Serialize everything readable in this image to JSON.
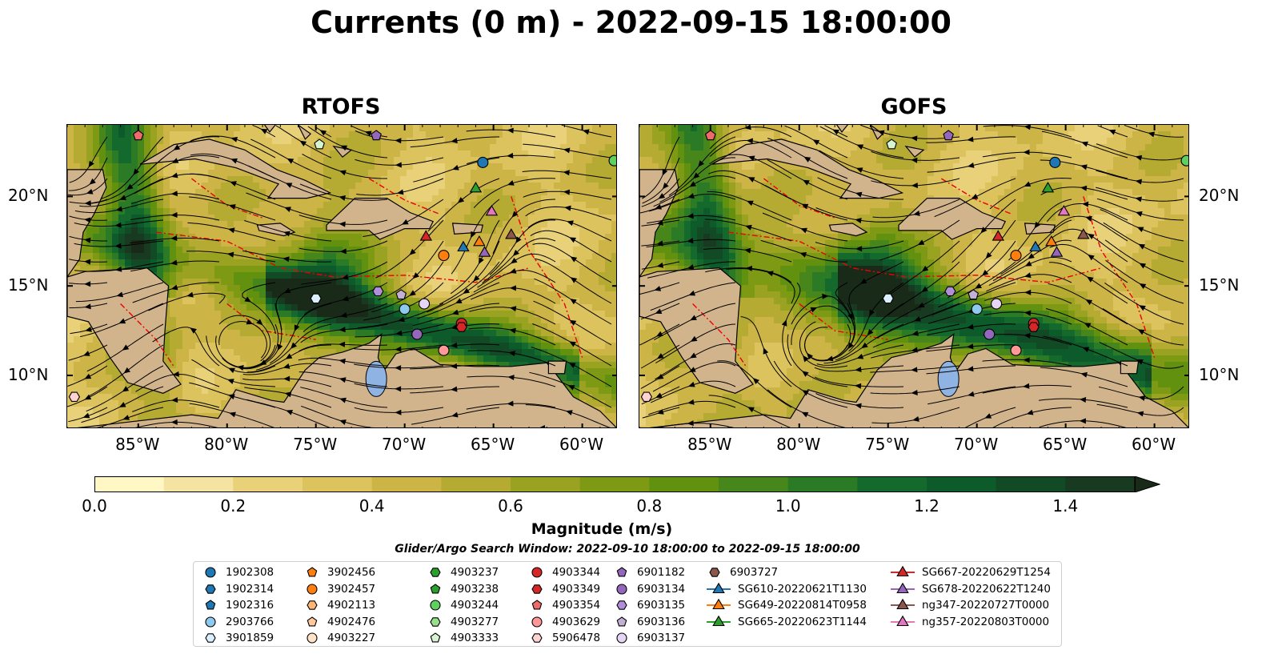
{
  "title": "Currents (0 m) - 2022-09-15 18:00:00",
  "panels": [
    {
      "title": "RTOFS",
      "variant": 0
    },
    {
      "title": "GOFS",
      "variant": 1
    }
  ],
  "lon_ticks": [
    "85°W",
    "80°W",
    "75°W",
    "70°W",
    "65°W",
    "60°W"
  ],
  "lat_ticks": [
    "20°N",
    "15°N",
    "10°N"
  ],
  "colorbar": {
    "label": "Magnitude (m/s)",
    "ticks": [
      "0.0",
      "0.2",
      "0.4",
      "0.6",
      "0.8",
      "1.0",
      "1.2",
      "1.4"
    ],
    "range": [
      0.0,
      1.5
    ],
    "extend": "max",
    "colors": [
      "#fff8c4",
      "#f5e3a1",
      "#e9d17a",
      "#dcc35e",
      "#cdb446",
      "#b5ab33",
      "#9aa321",
      "#7e9a14",
      "#62900f",
      "#46861a",
      "#2b7a25",
      "#136a2c",
      "#0d5a2b",
      "#124a26",
      "#173a20",
      "#192a19"
    ]
  },
  "search_window": "Glider/Argo Search Window: 2022-09-10 18:00:00 to 2022-09-15 18:00:00",
  "legend": [
    {
      "label": "1902308",
      "marker": "circle",
      "color": "#1f77b4"
    },
    {
      "label": "1902314",
      "marker": "hexagon",
      "color": "#1f77b4"
    },
    {
      "label": "1902316",
      "marker": "pentagon",
      "color": "#1f77b4"
    },
    {
      "label": "2903766",
      "marker": "circle",
      "color": "#8ec9f0"
    },
    {
      "label": "3901859",
      "marker": "hexagon",
      "color": "#dcefff"
    },
    {
      "label": "3902456",
      "marker": "pentagon",
      "color": "#ff7f0e"
    },
    {
      "label": "3902457",
      "marker": "circle",
      "color": "#ff7f0e"
    },
    {
      "label": "4902113",
      "marker": "hexagon",
      "color": "#ffb574"
    },
    {
      "label": "4902476",
      "marker": "pentagon",
      "color": "#ffc99c"
    },
    {
      "label": "4903227",
      "marker": "circle",
      "color": "#ffe3c9"
    },
    {
      "label": "4903237",
      "marker": "hexagon",
      "color": "#2ca02c"
    },
    {
      "label": "4903238",
      "marker": "pentagon",
      "color": "#2ca02c"
    },
    {
      "label": "4903244",
      "marker": "circle",
      "color": "#5fcf5f"
    },
    {
      "label": "4903277",
      "marker": "hexagon",
      "color": "#98df8a"
    },
    {
      "label": "4903333",
      "marker": "pentagon",
      "color": "#d6f5cf"
    },
    {
      "label": "4903344",
      "marker": "circle",
      "color": "#d62728"
    },
    {
      "label": "4903349",
      "marker": "hexagon",
      "color": "#d62728"
    },
    {
      "label": "4903354",
      "marker": "pentagon",
      "color": "#ef6a6a"
    },
    {
      "label": "4903629",
      "marker": "circle",
      "color": "#ff9896"
    },
    {
      "label": "5906478",
      "marker": "hexagon",
      "color": "#ffd3d2"
    },
    {
      "label": "6901182",
      "marker": "pentagon",
      "color": "#9467bd"
    },
    {
      "label": "6903134",
      "marker": "circle",
      "color": "#9467bd"
    },
    {
      "label": "6903135",
      "marker": "hexagon",
      "color": "#b18edb"
    },
    {
      "label": "6903136",
      "marker": "pentagon",
      "color": "#c5b0d5"
    },
    {
      "label": "6903137",
      "marker": "circle",
      "color": "#e6d5f5"
    },
    {
      "label": "6903727",
      "marker": "hexagon",
      "color": "#8c564b"
    },
    {
      "label": "SG610-20220621T1130",
      "marker": "triangle-line",
      "color": "#1f77b4"
    },
    {
      "label": "SG649-20220814T0958",
      "marker": "triangle-line",
      "color": "#ff7f0e"
    },
    {
      "label": "SG665-20220623T1144",
      "marker": "triangle-line",
      "color": "#2ca02c"
    },
    {
      "label": "SG667-20220629T1254",
      "marker": "triangle-line",
      "color": "#d62728"
    },
    {
      "label": "SG678-20220622T1240",
      "marker": "triangle-line",
      "color": "#9467bd"
    },
    {
      "label": "ng347-20220727T0000",
      "marker": "triangle-line",
      "color": "#8c564b"
    },
    {
      "label": "ng357-20220803T0000",
      "marker": "triangle-line",
      "color": "#e377c2"
    }
  ],
  "observations": [
    {
      "id": "1902308",
      "lon": -65.6,
      "lat": 21.9
    },
    {
      "id": "3901859",
      "lon": -75.0,
      "lat": 14.3
    },
    {
      "id": "3902457",
      "lon": -67.8,
      "lat": 16.7
    },
    {
      "id": "4903244",
      "lon": -58.2,
      "lat": 22.0
    },
    {
      "id": "4903333",
      "lon": -74.8,
      "lat": 22.9
    },
    {
      "id": "4903344",
      "lon": -66.8,
      "lat": 12.9
    },
    {
      "id": "4903349",
      "lon": -66.8,
      "lat": 12.7
    },
    {
      "id": "4903354",
      "lon": -85.0,
      "lat": 23.4
    },
    {
      "id": "4903629",
      "lon": -67.8,
      "lat": 11.4
    },
    {
      "id": "5906478",
      "lon": -88.6,
      "lat": 8.8
    },
    {
      "id": "6901182",
      "lon": -71.6,
      "lat": 23.4
    },
    {
      "id": "6903134",
      "lon": -69.3,
      "lat": 12.3
    },
    {
      "id": "6903135",
      "lon": -71.5,
      "lat": 14.7
    },
    {
      "id": "6903136",
      "lon": -70.2,
      "lat": 14.5
    },
    {
      "id": "6903137",
      "lon": -68.9,
      "lat": 14.0
    },
    {
      "id": "2903766",
      "lon": -70.0,
      "lat": 13.7
    },
    {
      "id": "SG610-20220621T1130",
      "lon": -66.7,
      "lat": 17.2
    },
    {
      "id": "SG649-20220814T0958",
      "lon": -65.8,
      "lat": 17.5
    },
    {
      "id": "SG665-20220623T1144",
      "lon": -66.0,
      "lat": 20.5
    },
    {
      "id": "SG667-20220629T1254",
      "lon": -68.8,
      "lat": 17.8
    },
    {
      "id": "SG678-20220622T1240",
      "lon": -65.5,
      "lat": 16.9
    },
    {
      "id": "ng347-20220727T0000",
      "lon": -64.0,
      "lat": 17.9
    },
    {
      "id": "ng357-20220803T0000",
      "lon": -65.1,
      "lat": 19.2
    }
  ],
  "extent": {
    "lon": [
      -89,
      -58
    ],
    "lat": [
      7,
      24
    ]
  }
}
